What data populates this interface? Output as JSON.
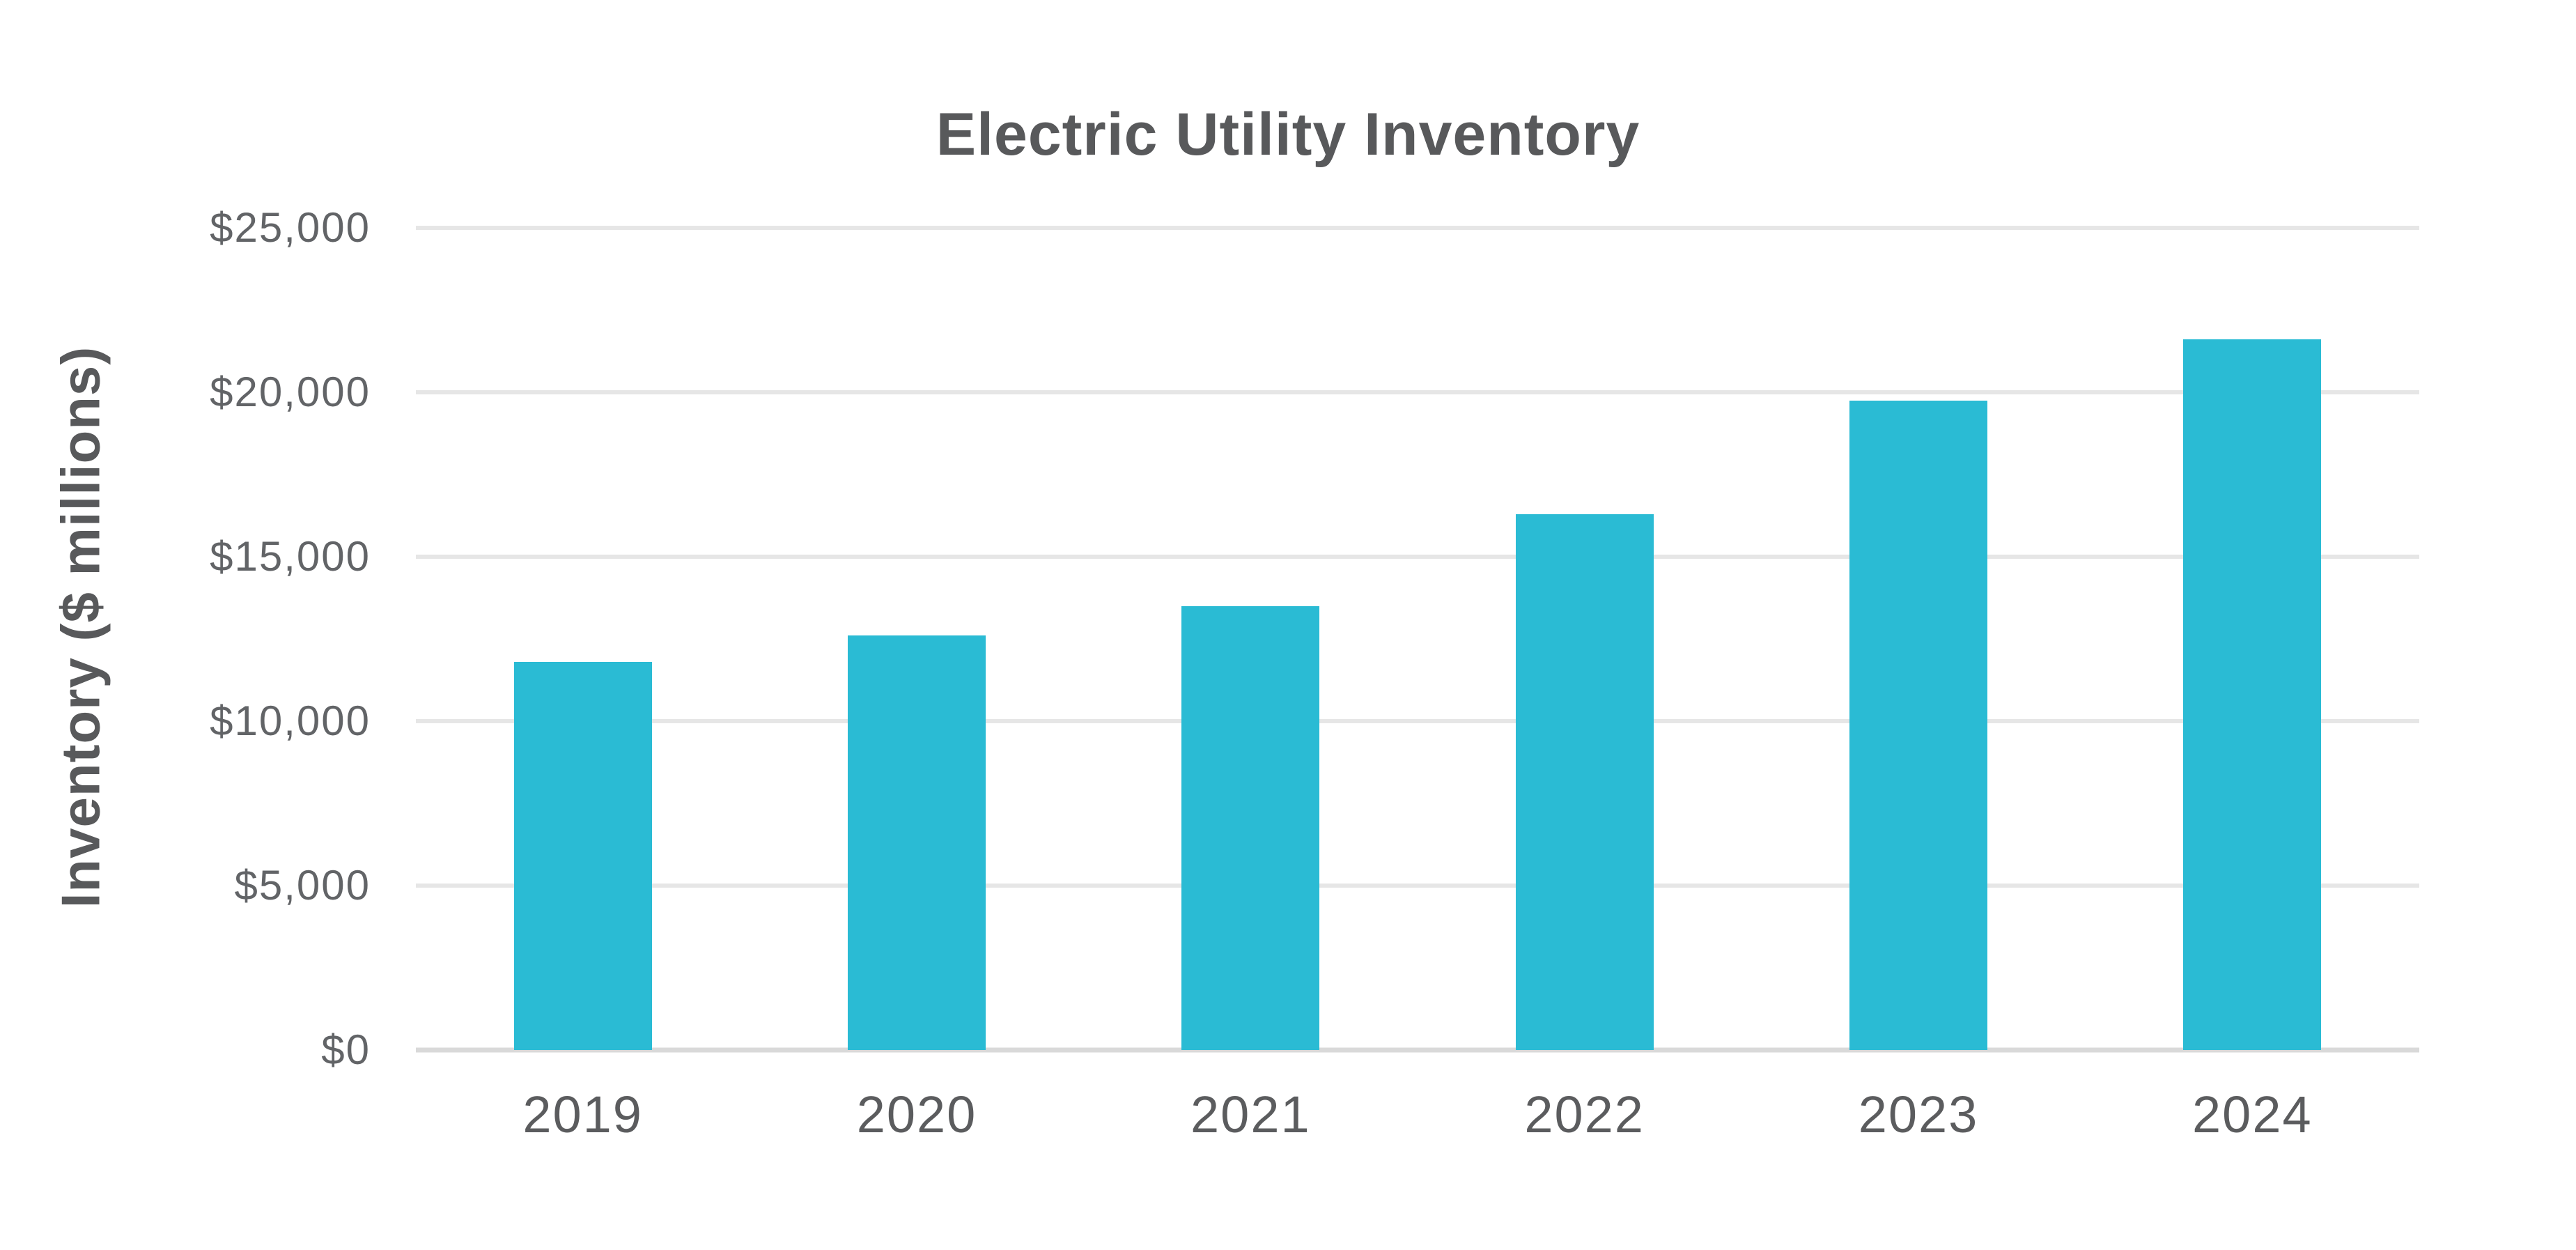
{
  "chart_data": {
    "type": "bar",
    "title": "Electric Utility Inventory",
    "xlabel": "",
    "ylabel": "Inventory ($ millions)",
    "categories": [
      "2019",
      "2020",
      "2021",
      "2022",
      "2023",
      "2024"
    ],
    "values": [
      11800,
      12600,
      13500,
      16300,
      19750,
      21600
    ],
    "series_name": "Inventory ($ millions)",
    "ylim": [
      0,
      25000
    ],
    "ytick_interval": 5000,
    "ytick_labels": [
      "$0",
      "$5,000",
      "$10,000",
      "$15,000",
      "$20,000",
      "$25,000"
    ],
    "grid": "horizontal gridlines on",
    "legend_position": "none",
    "bar_color": "#2ABBD4"
  },
  "colors": {
    "title_text": "#58595B",
    "axis_title_text": "#58595B",
    "y_tick_text": "#626467",
    "x_tick_text": "#5B5C5E",
    "gridline": "#E6E6E6",
    "baseline": "#D9D9D9",
    "background": "#FFFFFF"
  }
}
